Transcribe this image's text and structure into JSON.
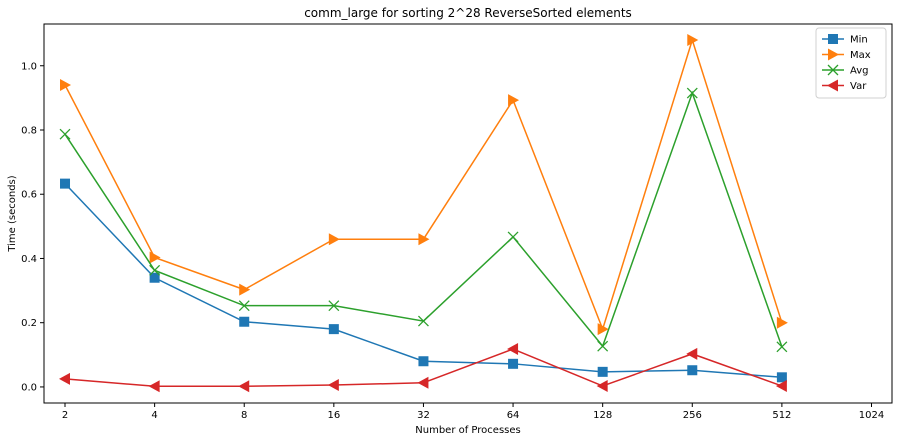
{
  "chart_data": {
    "type": "line",
    "title": "comm_large for sorting 2^28 ReverseSorted elements",
    "xlabel": "Number of Processes",
    "ylabel": "Time (seconds)",
    "x_scale": "log2",
    "x": [
      2,
      4,
      8,
      16,
      32,
      64,
      128,
      256,
      512
    ],
    "xticks": [
      "2",
      "4",
      "8",
      "16",
      "32",
      "64",
      "128",
      "256",
      "512",
      "1024"
    ],
    "xlim": [
      1.7,
      1200
    ],
    "ylim": [
      -0.05,
      1.13
    ],
    "yticks": [
      "0.0",
      "0.2",
      "0.4",
      "0.6",
      "0.8",
      "1.0"
    ],
    "grid": false,
    "legend_position": "top-right",
    "series": [
      {
        "name": "Min",
        "color": "#1f77b4",
        "marker": "square",
        "values": [
          0.633,
          0.34,
          0.203,
          0.18,
          0.08,
          0.072,
          0.047,
          0.052,
          0.03
        ]
      },
      {
        "name": "Max",
        "color": "#ff7f0e",
        "marker": "triangle-right",
        "values": [
          0.94,
          0.403,
          0.303,
          0.46,
          0.46,
          0.893,
          0.18,
          1.08,
          0.2
        ]
      },
      {
        "name": "Avg",
        "color": "#2ca02c",
        "marker": "x",
        "values": [
          0.787,
          0.363,
          0.253,
          0.253,
          0.205,
          0.467,
          0.127,
          0.915,
          0.125
        ]
      },
      {
        "name": "Var",
        "color": "#d62728",
        "marker": "triangle-left",
        "values": [
          0.025,
          0.002,
          0.002,
          0.006,
          0.013,
          0.118,
          0.003,
          0.103,
          0.003
        ]
      }
    ]
  }
}
